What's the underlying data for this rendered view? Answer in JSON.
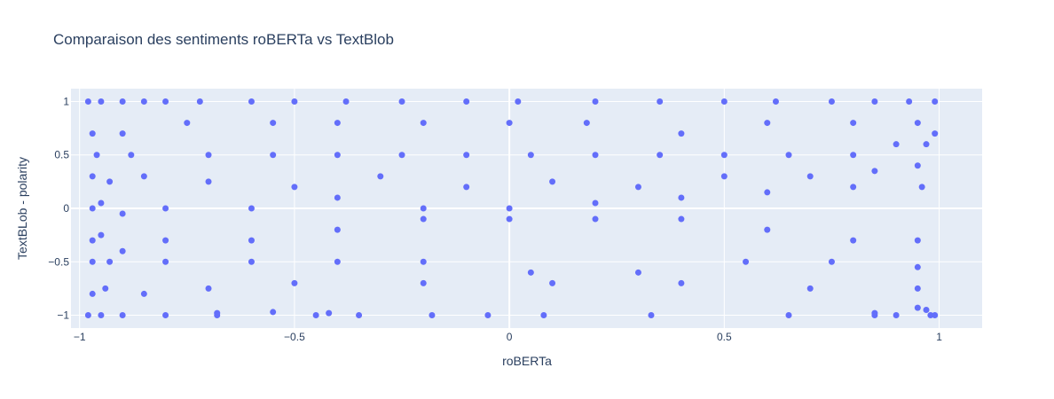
{
  "chart_data": {
    "type": "scatter",
    "title": "Comparaison des sentiments roBERTa vs TextBlob",
    "xlabel": "roBERTa",
    "ylabel": "TextBLob - polarity",
    "xlim": [
      -1.02,
      1.1
    ],
    "ylim": [
      -1.12,
      1.12
    ],
    "x_ticks": [
      -1,
      -0.5,
      0,
      0.5,
      1
    ],
    "y_ticks": [
      -1,
      -0.5,
      0,
      0.5,
      1
    ],
    "x_tick_labels": [
      "−1",
      "−0.5",
      "0",
      "0.5",
      "1"
    ],
    "y_tick_labels": [
      "−1",
      "−0.5",
      "0",
      "0.5",
      "1"
    ],
    "grid": true,
    "colors": {
      "marker": "#636efa",
      "plot_bg": "#e5ecf6",
      "grid": "#ffffff",
      "text": "#2a3f5f"
    },
    "series": [
      {
        "points": [
          [
            -0.98,
            1.0
          ],
          [
            -0.95,
            1.0
          ],
          [
            -0.9,
            1.0
          ],
          [
            -0.85,
            1.0
          ],
          [
            -0.8,
            1.0
          ],
          [
            -0.72,
            1.0
          ],
          [
            -0.6,
            1.0
          ],
          [
            -0.5,
            1.0
          ],
          [
            -0.38,
            1.0
          ],
          [
            -0.25,
            1.0
          ],
          [
            -0.1,
            1.0
          ],
          [
            0.02,
            1.0
          ],
          [
            0.2,
            1.0
          ],
          [
            0.35,
            1.0
          ],
          [
            0.5,
            1.0
          ],
          [
            0.62,
            1.0
          ],
          [
            0.75,
            1.0
          ],
          [
            0.85,
            1.0
          ],
          [
            0.93,
            1.0
          ],
          [
            0.99,
            1.0
          ],
          [
            -0.97,
            0.7
          ],
          [
            -0.9,
            0.7
          ],
          [
            -0.75,
            0.8
          ],
          [
            -0.55,
            0.8
          ],
          [
            -0.4,
            0.8
          ],
          [
            -0.2,
            0.8
          ],
          [
            0.0,
            0.8
          ],
          [
            0.18,
            0.8
          ],
          [
            0.4,
            0.7
          ],
          [
            0.6,
            0.8
          ],
          [
            0.8,
            0.8
          ],
          [
            0.95,
            0.8
          ],
          [
            -0.96,
            0.5
          ],
          [
            -0.88,
            0.5
          ],
          [
            -0.7,
            0.5
          ],
          [
            -0.55,
            0.5
          ],
          [
            -0.4,
            0.5
          ],
          [
            -0.25,
            0.5
          ],
          [
            -0.1,
            0.5
          ],
          [
            0.05,
            0.5
          ],
          [
            0.2,
            0.5
          ],
          [
            0.35,
            0.5
          ],
          [
            0.5,
            0.5
          ],
          [
            0.65,
            0.5
          ],
          [
            0.8,
            0.5
          ],
          [
            0.9,
            0.6
          ],
          [
            0.97,
            0.6
          ],
          [
            0.99,
            0.7
          ],
          [
            -0.97,
            0.3
          ],
          [
            -0.93,
            0.25
          ],
          [
            -0.85,
            0.3
          ],
          [
            -0.7,
            0.25
          ],
          [
            -0.5,
            0.2
          ],
          [
            -0.3,
            0.3
          ],
          [
            -0.1,
            0.2
          ],
          [
            0.1,
            0.25
          ],
          [
            0.3,
            0.2
          ],
          [
            0.5,
            0.3
          ],
          [
            0.7,
            0.3
          ],
          [
            0.85,
            0.35
          ],
          [
            0.95,
            0.4
          ],
          [
            -0.97,
            0.0
          ],
          [
            -0.95,
            0.05
          ],
          [
            -0.9,
            -0.05
          ],
          [
            -0.8,
            0.0
          ],
          [
            -0.6,
            0.0
          ],
          [
            -0.4,
            0.1
          ],
          [
            -0.2,
            0.0
          ],
          [
            0.0,
            0.0
          ],
          [
            0.2,
            0.05
          ],
          [
            0.4,
            0.1
          ],
          [
            0.6,
            0.15
          ],
          [
            0.8,
            0.2
          ],
          [
            0.96,
            0.2
          ],
          [
            -0.97,
            -0.3
          ],
          [
            -0.95,
            -0.25
          ],
          [
            -0.9,
            -0.4
          ],
          [
            -0.8,
            -0.3
          ],
          [
            -0.6,
            -0.3
          ],
          [
            -0.4,
            -0.2
          ],
          [
            -0.2,
            -0.1
          ],
          [
            0.0,
            -0.1
          ],
          [
            0.2,
            -0.1
          ],
          [
            0.4,
            -0.1
          ],
          [
            0.6,
            -0.2
          ],
          [
            0.8,
            -0.3
          ],
          [
            0.95,
            -0.3
          ],
          [
            -0.97,
            -0.5
          ],
          [
            -0.93,
            -0.5
          ],
          [
            -0.8,
            -0.5
          ],
          [
            -0.6,
            -0.5
          ],
          [
            -0.4,
            -0.5
          ],
          [
            -0.2,
            -0.5
          ],
          [
            0.05,
            -0.6
          ],
          [
            0.3,
            -0.6
          ],
          [
            0.55,
            -0.5
          ],
          [
            0.75,
            -0.5
          ],
          [
            0.95,
            -0.55
          ],
          [
            -0.97,
            -0.8
          ],
          [
            -0.94,
            -0.75
          ],
          [
            -0.85,
            -0.8
          ],
          [
            -0.7,
            -0.75
          ],
          [
            -0.5,
            -0.7
          ],
          [
            -0.2,
            -0.7
          ],
          [
            0.1,
            -0.7
          ],
          [
            0.4,
            -0.7
          ],
          [
            0.7,
            -0.75
          ],
          [
            0.95,
            -0.75
          ],
          [
            -0.98,
            -1.0
          ],
          [
            -0.95,
            -1.0
          ],
          [
            -0.9,
            -1.0
          ],
          [
            -0.8,
            -1.0
          ],
          [
            -0.68,
            -1.0
          ],
          [
            -0.45,
            -1.0
          ],
          [
            -0.35,
            -1.0
          ],
          [
            -0.18,
            -1.0
          ],
          [
            -0.05,
            -1.0
          ],
          [
            0.08,
            -1.0
          ],
          [
            0.33,
            -1.0
          ],
          [
            0.65,
            -1.0
          ],
          [
            0.85,
            -1.0
          ],
          [
            0.9,
            -1.0
          ],
          [
            0.98,
            -1.0
          ],
          [
            0.99,
            -1.0
          ],
          [
            -0.68,
            -0.98
          ],
          [
            -0.55,
            -0.97
          ],
          [
            -0.42,
            -0.98
          ],
          [
            0.85,
            -0.98
          ],
          [
            0.95,
            -0.93
          ],
          [
            0.97,
            -0.95
          ]
        ]
      }
    ]
  }
}
